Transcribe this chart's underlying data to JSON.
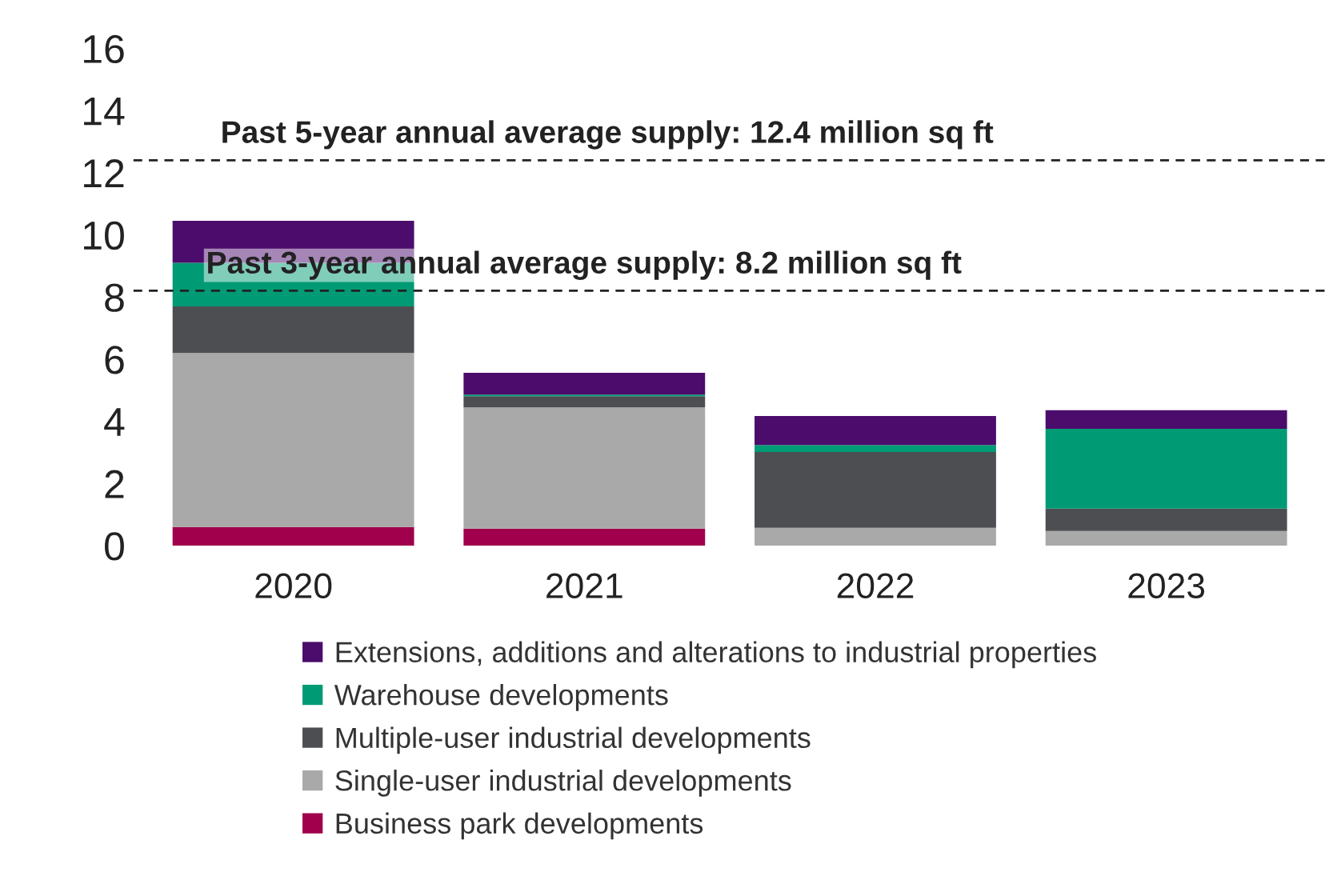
{
  "chart_data": {
    "type": "bar",
    "stacked": true,
    "categories": [
      "2020",
      "2021",
      "2022",
      "2023"
    ],
    "series": [
      {
        "name": "Business park developments",
        "color": "#a0004c",
        "values": [
          0.6,
          0.55,
          0,
          0
        ]
      },
      {
        "name": "Single-user industrial developments",
        "color": "#a8a9a8",
        "values": [
          5.6,
          3.9,
          0.57,
          0.47
        ]
      },
      {
        "name": "Multiple-user industrial developments",
        "color": "#4d4e52",
        "values": [
          1.5,
          0.36,
          2.44,
          0.72
        ]
      },
      {
        "name": "Warehouse developments",
        "color": "#009a74",
        "values": [
          1.4,
          0.05,
          0.23,
          2.57
        ]
      },
      {
        "name": "Extensions, additions and alterations to industrial properties",
        "color": "#4b0c6c",
        "values": [
          1.35,
          0.7,
          0.93,
          0.6
        ]
      }
    ],
    "ylim": [
      0,
      16
    ],
    "yticks": [
      0,
      2,
      4,
      6,
      8,
      10,
      12,
      14,
      16
    ],
    "ref_lines": [
      {
        "axis": "y",
        "value": 12.4,
        "label": "Past 5-year annual average supply: 12.4 million sq ft",
        "line_style": "dashed",
        "color": "#222222"
      },
      {
        "axis": "y",
        "value": 8.2,
        "label": "Past 3-year annual average supply: 8.2 million sq ft",
        "line_style": "dashed",
        "color": "#222222"
      }
    ],
    "grid": false,
    "legend": "bottom"
  }
}
